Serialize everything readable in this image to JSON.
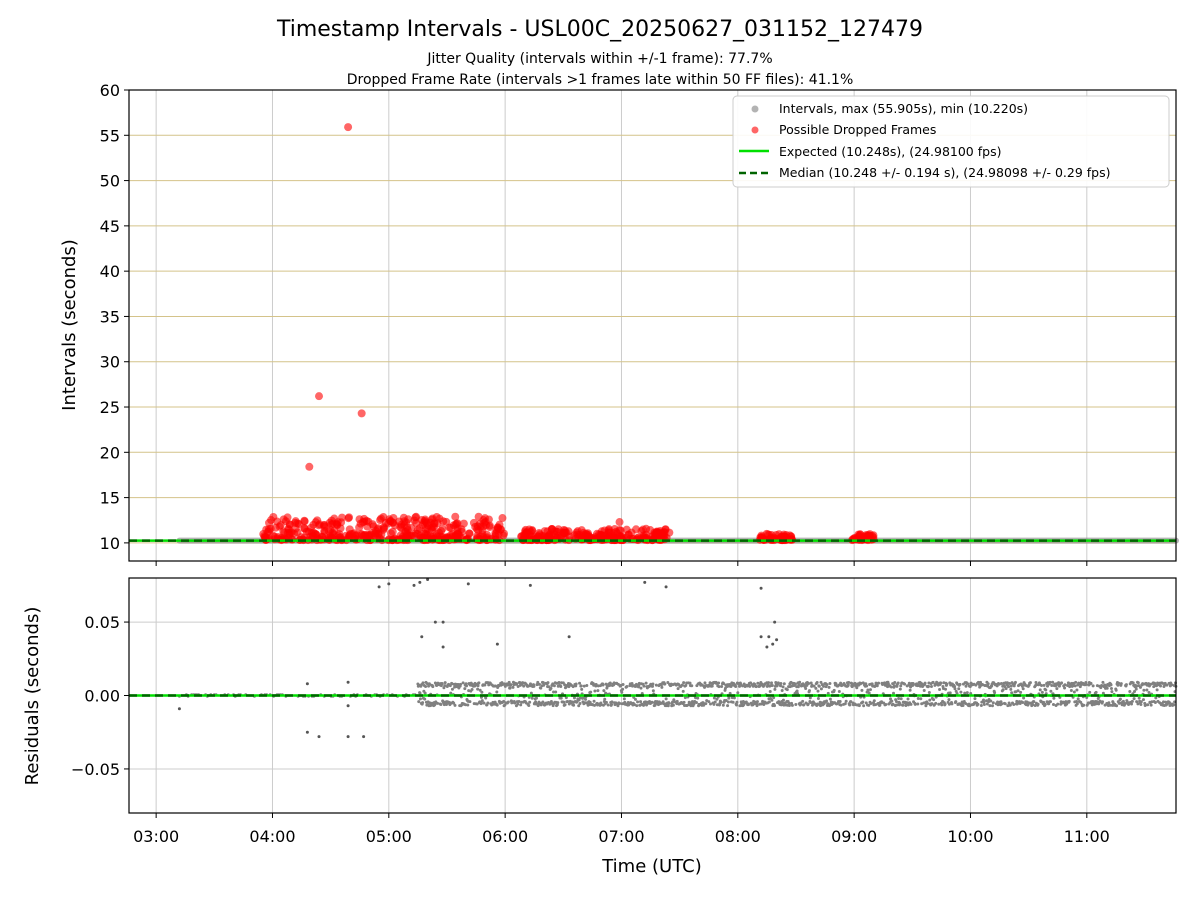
{
  "figure": {
    "title": "Timestamp Intervals - USL00C_20250627_031152_127479",
    "subtitle_1": "Jitter Quality (intervals within +/-1 frame): 77.7%",
    "subtitle_2": "Dropped Frame Rate (intervals >1 frames late within 50 FF files): 41.1%"
  },
  "colors": {
    "intervals": "#808080",
    "dropped": "#ff0000",
    "expected": "#00e000",
    "median": "#006400",
    "hgrid_top": "#d4c38a",
    "grid": "#cccccc"
  },
  "chart_data": [
    {
      "type": "scatter",
      "xlabel": "",
      "ylabel": "Intervals (seconds)",
      "x_ticks": [
        "03:00",
        "04:00",
        "05:00",
        "06:00",
        "07:00",
        "08:00",
        "09:00",
        "10:00",
        "11:00"
      ],
      "xlim": [
        "02:46",
        "11:46"
      ],
      "ylim": [
        8,
        60
      ],
      "y_ticks": [
        10,
        15,
        20,
        25,
        30,
        35,
        40,
        45,
        50,
        55,
        60
      ],
      "grid": true,
      "legend_position": "top-right",
      "legend": [
        "Intervals, max (55.905s), min (10.220s)",
        "Possible Dropped Frames",
        "Expected (10.248s), (24.98100 fps)",
        "Median (10.248 +/- 0.194 s), (24.98098 +/- 0.29 fps)"
      ],
      "expected": 10.248,
      "median": 10.248,
      "intervals_range": [
        "03:12",
        "11:46"
      ],
      "dropped_frames": [
        {
          "x": "04:19",
          "y": 18.4
        },
        {
          "x": "04:24",
          "y": 26.2
        },
        {
          "x": "04:39",
          "y": 55.9
        },
        {
          "x": "04:46",
          "y": 24.3
        },
        {
          "x": "06:59",
          "y": 12.3
        }
      ],
      "dropped_clusters": [
        {
          "start": "03:55",
          "end": "06:00",
          "ymin": 10.3,
          "ymax": 12.9
        },
        {
          "start": "06:08",
          "end": "07:25",
          "ymin": 10.3,
          "ymax": 11.6
        },
        {
          "start": "08:10",
          "end": "08:28",
          "ymin": 10.3,
          "ymax": 11.0
        },
        {
          "start": "08:59",
          "end": "09:10",
          "ymin": 10.3,
          "ymax": 11.1
        }
      ]
    },
    {
      "type": "scatter",
      "xlabel": "Time (UTC)",
      "ylabel": "Residuals (seconds)",
      "x_ticks": [
        "03:00",
        "04:00",
        "05:00",
        "06:00",
        "07:00",
        "08:00",
        "09:00",
        "10:00",
        "11:00"
      ],
      "xlim": [
        "02:46",
        "11:46"
      ],
      "ylim": [
        -0.08,
        0.08
      ],
      "y_ticks": [
        "0.05",
        "0.00",
        "−0.05"
      ],
      "grid": true,
      "outliers": [
        {
          "x": "03:12",
          "y": -0.009
        },
        {
          "x": "04:18",
          "y": -0.025
        },
        {
          "x": "04:24",
          "y": -0.028
        },
        {
          "x": "04:39",
          "y": -0.028
        },
        {
          "x": "04:47",
          "y": -0.028
        },
        {
          "x": "04:18",
          "y": 0.008
        },
        {
          "x": "04:39",
          "y": 0.009
        },
        {
          "x": "04:39",
          "y": -0.007
        },
        {
          "x": "04:55",
          "y": 0.074
        },
        {
          "x": "05:00",
          "y": 0.076
        },
        {
          "x": "05:13",
          "y": 0.075
        },
        {
          "x": "05:16",
          "y": 0.077
        },
        {
          "x": "05:20",
          "y": 0.079
        },
        {
          "x": "05:17",
          "y": 0.04
        },
        {
          "x": "05:24",
          "y": 0.05
        },
        {
          "x": "05:28",
          "y": 0.05
        },
        {
          "x": "05:28",
          "y": 0.033
        },
        {
          "x": "05:41",
          "y": 0.076
        },
        {
          "x": "05:56",
          "y": 0.035
        },
        {
          "x": "06:13",
          "y": 0.075
        },
        {
          "x": "06:33",
          "y": 0.04
        },
        {
          "x": "07:12",
          "y": 0.077
        },
        {
          "x": "07:23",
          "y": 0.074
        },
        {
          "x": "08:12",
          "y": 0.073
        },
        {
          "x": "08:12",
          "y": 0.04
        },
        {
          "x": "08:15",
          "y": 0.033
        },
        {
          "x": "08:16",
          "y": 0.04
        },
        {
          "x": "08:18",
          "y": 0.035
        },
        {
          "x": "08:19",
          "y": 0.05
        },
        {
          "x": "08:20",
          "y": 0.038
        }
      ],
      "residual_band": {
        "start": "05:15",
        "end": "11:46",
        "ymin": -0.007,
        "ymax": 0.009
      }
    }
  ]
}
